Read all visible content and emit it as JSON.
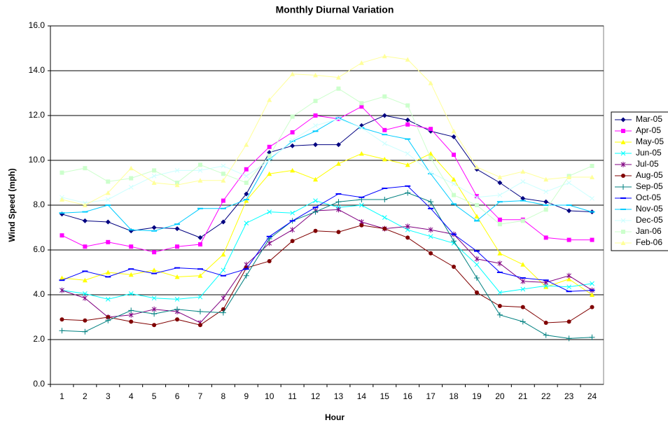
{
  "chart_data": {
    "type": "line",
    "title": "Monthly Diurnal Variation",
    "x_label": "Hour",
    "y_label": "Wind Speed (mph)",
    "categories": [
      "1",
      "2",
      "3",
      "4",
      "5",
      "6",
      "7",
      "8",
      "9",
      "10",
      "11",
      "12",
      "13",
      "14",
      "15",
      "16",
      "17",
      "18",
      "19",
      "20",
      "21",
      "22",
      "23",
      "24"
    ],
    "ylim": [
      0,
      16
    ],
    "yticks": [
      {
        "value": 0,
        "label": "0.0"
      },
      {
        "value": 2,
        "label": "2.0"
      },
      {
        "value": 4,
        "label": "4.0"
      },
      {
        "value": 6,
        "label": "6.0"
      },
      {
        "value": 8,
        "label": "8.0"
      },
      {
        "value": 10,
        "label": "10.0"
      },
      {
        "value": 12,
        "label": "12.0"
      },
      {
        "value": 14,
        "label": "14.0"
      },
      {
        "value": 16,
        "label": "16.0"
      }
    ],
    "grid": true,
    "legend": "right",
    "series": [
      {
        "name": "Mar-05",
        "color": "#000080",
        "marker": "diamond",
        "values": [
          7.6,
          7.3,
          7.25,
          6.85,
          7.0,
          6.95,
          6.55,
          7.25,
          8.5,
          10.35,
          10.65,
          10.7,
          10.7,
          11.55,
          12.0,
          11.8,
          11.3,
          11.05,
          9.6,
          9.0,
          8.3,
          8.15,
          7.75,
          7.7
        ]
      },
      {
        "name": "Apr-05",
        "color": "#ff00ff",
        "marker": "square",
        "values": [
          6.65,
          6.15,
          6.35,
          6.15,
          5.9,
          6.15,
          6.25,
          8.2,
          9.6,
          10.6,
          11.25,
          12.0,
          11.85,
          12.4,
          11.35,
          11.6,
          11.4,
          10.25,
          8.4,
          7.35,
          7.35,
          6.55,
          6.45,
          6.45
        ]
      },
      {
        "name": "May-05",
        "color": "#ffff00",
        "marker": "triangle",
        "values": [
          4.75,
          4.65,
          5.0,
          4.9,
          5.1,
          4.8,
          4.85,
          5.8,
          8.2,
          9.4,
          9.55,
          9.15,
          9.85,
          10.3,
          10.05,
          9.8,
          10.3,
          9.15,
          7.5,
          5.85,
          5.35,
          4.35,
          4.7,
          4.0
        ]
      },
      {
        "name": "Jun-05",
        "color": "#00ffff",
        "marker": "x",
        "values": [
          4.2,
          4.05,
          3.8,
          4.05,
          3.85,
          3.8,
          3.9,
          5.1,
          7.2,
          7.7,
          7.65,
          8.2,
          7.9,
          8.0,
          7.45,
          6.9,
          6.6,
          6.3,
          5.35,
          4.1,
          4.25,
          4.4,
          4.35,
          4.5
        ]
      },
      {
        "name": "Jul-05",
        "color": "#800080",
        "marker": "asterisk",
        "values": [
          4.2,
          3.85,
          3.0,
          3.1,
          3.35,
          3.25,
          2.75,
          3.85,
          5.35,
          6.3,
          6.9,
          7.75,
          7.8,
          7.25,
          6.95,
          7.05,
          6.9,
          6.7,
          5.6,
          5.4,
          4.6,
          4.55,
          4.85,
          4.2
        ]
      },
      {
        "name": "Aug-05",
        "color": "#800000",
        "marker": "circle",
        "values": [
          2.9,
          2.85,
          3.0,
          2.8,
          2.65,
          2.9,
          2.65,
          3.35,
          5.2,
          5.5,
          6.4,
          6.85,
          6.8,
          7.1,
          6.95,
          6.55,
          5.85,
          5.25,
          4.1,
          3.5,
          3.45,
          2.75,
          2.8,
          3.45
        ]
      },
      {
        "name": "Sep-05",
        "color": "#008080",
        "marker": "plus",
        "values": [
          2.4,
          2.35,
          2.85,
          3.3,
          3.15,
          3.35,
          3.25,
          3.2,
          4.85,
          6.5,
          7.3,
          7.7,
          8.15,
          8.25,
          8.25,
          8.55,
          8.15,
          6.4,
          4.75,
          3.1,
          2.8,
          2.2,
          2.05,
          2.1
        ]
      },
      {
        "name": "Oct-05",
        "color": "#0000ff",
        "marker": "dash",
        "values": [
          4.65,
          5.05,
          4.8,
          5.15,
          4.95,
          5.2,
          5.15,
          4.85,
          5.15,
          6.6,
          7.3,
          7.9,
          8.5,
          8.35,
          8.75,
          8.85,
          7.85,
          6.7,
          5.95,
          5.0,
          4.75,
          4.65,
          4.15,
          4.2
        ]
      },
      {
        "name": "Nov-05",
        "color": "#00ccff",
        "marker": "dash",
        "values": [
          7.65,
          7.7,
          8.0,
          6.9,
          6.85,
          7.15,
          7.85,
          7.85,
          8.25,
          10.05,
          10.85,
          11.3,
          11.9,
          11.45,
          11.15,
          10.95,
          9.4,
          8.05,
          7.3,
          8.15,
          8.2,
          8.0,
          8.0,
          7.7
        ]
      },
      {
        "name": "Dec-05",
        "color": "#ccffff",
        "marker": "x",
        "values": [
          8.35,
          8.1,
          8.25,
          8.8,
          9.3,
          9.55,
          9.55,
          9.75,
          9.3,
          10.0,
          10.9,
          11.55,
          11.85,
          11.45,
          10.75,
          10.3,
          9.45,
          8.95,
          8.35,
          8.45,
          9.05,
          8.6,
          9.0,
          8.3
        ]
      },
      {
        "name": "Jan-06",
        "color": "#ccffcc",
        "marker": "square",
        "values": [
          9.45,
          9.65,
          9.05,
          9.2,
          9.55,
          9.0,
          9.8,
          9.4,
          9.0,
          10.2,
          11.95,
          12.65,
          13.2,
          12.55,
          12.85,
          12.45,
          10.1,
          8.45,
          8.0,
          7.15,
          7.3,
          7.8,
          9.3,
          9.75
        ]
      },
      {
        "name": "Feb-06",
        "color": "#ffff99",
        "marker": "triangle",
        "values": [
          8.25,
          8.0,
          8.55,
          9.65,
          9.0,
          8.9,
          9.1,
          9.1,
          10.7,
          12.7,
          13.85,
          13.8,
          13.7,
          14.35,
          14.65,
          14.5,
          13.45,
          11.3,
          9.7,
          9.25,
          9.5,
          9.15,
          9.25,
          9.25
        ]
      }
    ]
  }
}
